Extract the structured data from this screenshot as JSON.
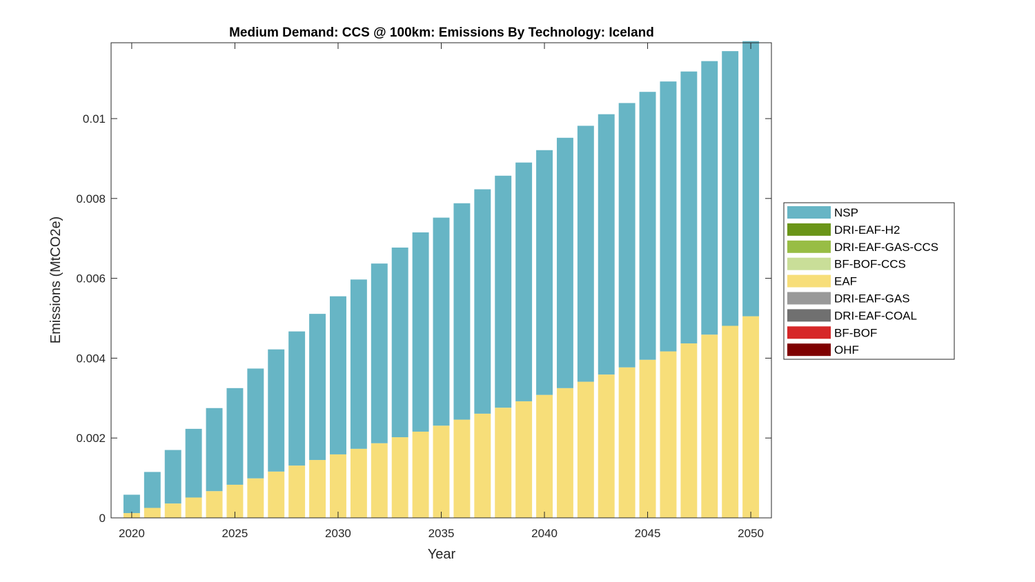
{
  "chart_data": {
    "type": "bar",
    "stacked": true,
    "title": "Medium Demand: CCS @ 100km: Emissions By Technology: Iceland",
    "xlabel": "Year",
    "ylabel": "Emissions (MtCO2e)",
    "xlim": [
      2019,
      2051
    ],
    "ylim": [
      0,
      0.0119
    ],
    "xticks": [
      2020,
      2025,
      2030,
      2035,
      2040,
      2045,
      2050
    ],
    "yticks": [
      0,
      0.002,
      0.004,
      0.006,
      0.008,
      0.01
    ],
    "ytick_labels": [
      "0",
      "0.002",
      "0.004",
      "0.006",
      "0.008",
      "0.01"
    ],
    "grid": false,
    "legend_position": "right",
    "categories": [
      2020,
      2021,
      2022,
      2023,
      2024,
      2025,
      2026,
      2027,
      2028,
      2029,
      2030,
      2031,
      2032,
      2033,
      2034,
      2035,
      2036,
      2037,
      2038,
      2039,
      2040,
      2041,
      2042,
      2043,
      2044,
      2045,
      2046,
      2047,
      2048,
      2049,
      2050
    ],
    "series": [
      {
        "name": "OHF",
        "color": "#7f0000",
        "values": [
          0,
          0,
          0,
          0,
          0,
          0,
          0,
          0,
          0,
          0,
          0,
          0,
          0,
          0,
          0,
          0,
          0,
          0,
          0,
          0,
          0,
          0,
          0,
          0,
          0,
          0,
          0,
          0,
          0,
          0,
          0
        ]
      },
      {
        "name": "BF-BOF",
        "color": "#d62728",
        "values": [
          0,
          0,
          0,
          0,
          0,
          0,
          0,
          0,
          0,
          0,
          0,
          0,
          0,
          0,
          0,
          0,
          0,
          0,
          0,
          0,
          0,
          0,
          0,
          0,
          0,
          0,
          0,
          0,
          0,
          0,
          0
        ]
      },
      {
        "name": "DRI-EAF-COAL",
        "color": "#707070",
        "values": [
          0,
          0,
          0,
          0,
          0,
          0,
          0,
          0,
          0,
          0,
          0,
          0,
          0,
          0,
          0,
          0,
          0,
          0,
          0,
          0,
          0,
          0,
          0,
          0,
          0,
          0,
          0,
          0,
          0,
          0,
          0
        ]
      },
      {
        "name": "DRI-EAF-GAS",
        "color": "#999999",
        "values": [
          0,
          0,
          0,
          0,
          0,
          0,
          0,
          0,
          0,
          0,
          0,
          0,
          0,
          0,
          0,
          0,
          0,
          0,
          0,
          0,
          0,
          0,
          0,
          0,
          0,
          0,
          0,
          0,
          0,
          0,
          0
        ]
      },
      {
        "name": "EAF",
        "color": "#f7de79",
        "values": [
          0.00012,
          0.00025,
          0.00036,
          0.00051,
          0.00067,
          0.00083,
          0.00099,
          0.00116,
          0.00131,
          0.00145,
          0.00159,
          0.00173,
          0.00187,
          0.00202,
          0.00216,
          0.00231,
          0.00246,
          0.00261,
          0.00276,
          0.00292,
          0.00308,
          0.00325,
          0.00341,
          0.00359,
          0.00377,
          0.00396,
          0.00417,
          0.00437,
          0.00459,
          0.00481,
          0.00505
        ]
      },
      {
        "name": "BF-BOF-CCS",
        "color": "#c9de98",
        "values": [
          0,
          0,
          0,
          0,
          0,
          0,
          0,
          0,
          0,
          0,
          0,
          0,
          0,
          0,
          0,
          0,
          0,
          0,
          0,
          0,
          0,
          0,
          0,
          0,
          0,
          0,
          0,
          0,
          0,
          0,
          0
        ]
      },
      {
        "name": "DRI-EAF-GAS-CCS",
        "color": "#98bd45",
        "values": [
          0,
          0,
          0,
          0,
          0,
          0,
          0,
          0,
          0,
          0,
          0,
          0,
          0,
          0,
          0,
          0,
          0,
          0,
          0,
          0,
          0,
          0,
          0,
          0,
          0,
          0,
          0,
          0,
          0,
          0,
          0
        ]
      },
      {
        "name": "DRI-EAF-H2",
        "color": "#6a9518",
        "values": [
          0,
          0,
          0,
          0,
          0,
          0,
          0,
          0,
          0,
          0,
          0,
          0,
          0,
          0,
          0,
          0,
          0,
          0,
          0,
          0,
          0,
          0,
          0,
          0,
          0,
          0,
          0,
          0,
          0,
          0,
          0
        ]
      },
      {
        "name": "NSP",
        "color": "#67b5c5",
        "values": [
          0.00046,
          0.0009,
          0.00134,
          0.00172,
          0.00208,
          0.00242,
          0.00275,
          0.00306,
          0.00336,
          0.00366,
          0.00396,
          0.00424,
          0.0045,
          0.00475,
          0.00499,
          0.00521,
          0.00542,
          0.00562,
          0.00581,
          0.00598,
          0.00613,
          0.00627,
          0.00641,
          0.00652,
          0.00662,
          0.00671,
          0.00676,
          0.00681,
          0.00685,
          0.00688,
          0.00689
        ]
      }
    ],
    "legend_order": [
      "NSP",
      "DRI-EAF-H2",
      "DRI-EAF-GAS-CCS",
      "BF-BOF-CCS",
      "EAF",
      "DRI-EAF-GAS",
      "DRI-EAF-COAL",
      "BF-BOF",
      "OHF"
    ]
  }
}
